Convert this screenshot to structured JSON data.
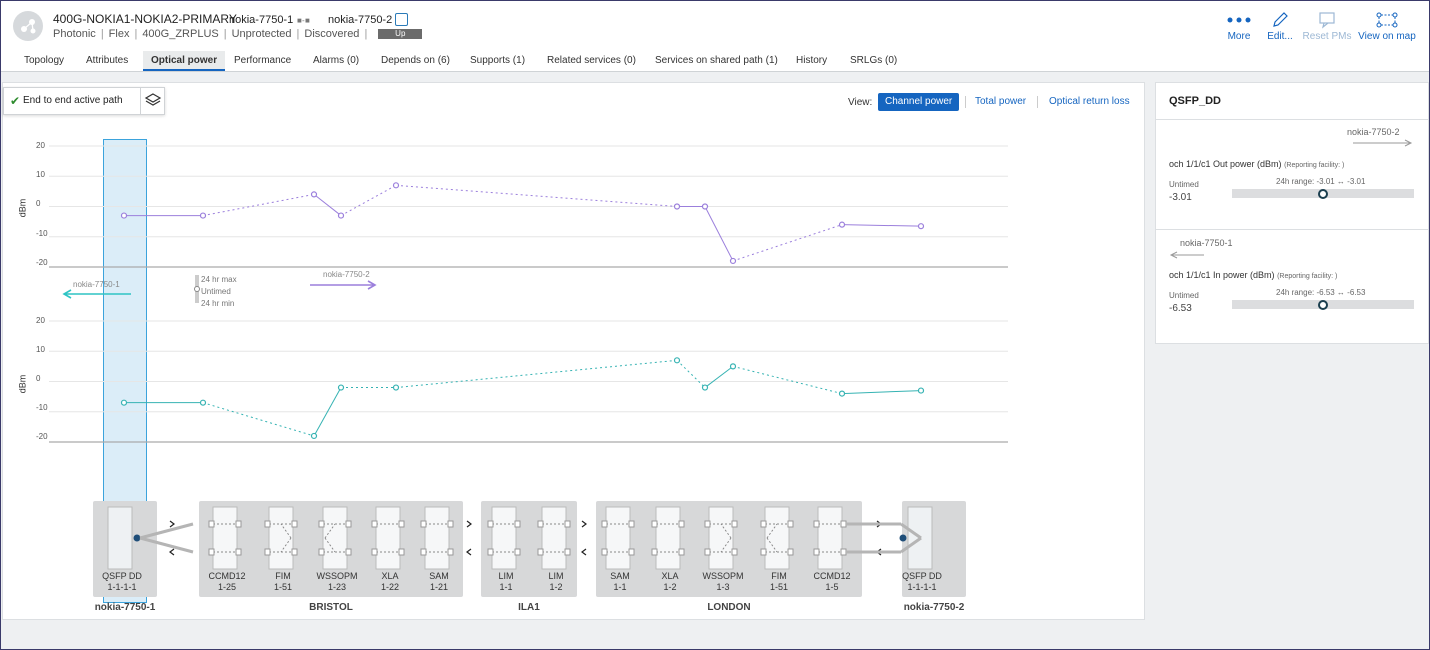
{
  "header": {
    "service_name": "400G-NOKIA1-NOKIA2-PRIMARY",
    "endpoint_a": "nokia-7750-1",
    "link_glyph": "■ - ■",
    "endpoint_b": "nokia-7750-2",
    "meta": [
      "Photonic",
      "Flex",
      "400G_ZRPLUS",
      "Unprotected",
      "Discovered"
    ],
    "status": "Up",
    "actions": [
      {
        "label": "More",
        "icon": "more-dots-icon",
        "enabled": true
      },
      {
        "label": "Edit...",
        "icon": "pencil-icon",
        "enabled": true
      },
      {
        "label": "Reset PMs",
        "icon": "reset-pm-icon",
        "enabled": false
      },
      {
        "label": "View on map",
        "icon": "map-topology-icon",
        "enabled": true
      }
    ],
    "accent_color": "#1565c0"
  },
  "tabs": [
    "Topology",
    "Attributes",
    "Optical power",
    "Performance",
    "Alarms (0)",
    "Depends on (6)",
    "Supports (1)",
    "Related services (0)",
    "Services on shared path (1)",
    "History",
    "SRLGs (0)"
  ],
  "active_tab": "Optical power",
  "main": {
    "path_toggle": "End to end active path",
    "view_label": "View:",
    "views": [
      "Channel power",
      "Total power",
      "Optical return loss"
    ],
    "active_view": "Channel power",
    "legend": {
      "max": "24 hr max",
      "untimed": "Untimed",
      "min": "24 hr min"
    }
  },
  "chart_data": [
    {
      "type": "line",
      "ylabel": "dBm",
      "yticks": [
        20,
        10,
        0,
        -10,
        -20
      ],
      "ylim": [
        -20,
        20
      ],
      "direction_label": "nokia-7750-2",
      "direction": "left-to-right",
      "series": [
        {
          "color": "#9b7fdc",
          "points": [
            -3,
            -3,
            4,
            -3,
            7,
            0,
            0,
            -18,
            -6,
            -6.5
          ]
        }
      ]
    },
    {
      "type": "line",
      "ylabel": "dBm",
      "yticks": [
        20,
        10,
        0,
        -10,
        -20
      ],
      "ylim": [
        -20,
        20
      ],
      "direction_label": "nokia-7750-1",
      "direction": "right-to-left",
      "series": [
        {
          "color": "#36b3b3",
          "points": [
            -7,
            -7,
            -18,
            -2,
            -2,
            7,
            -2,
            5,
            -4,
            -3
          ]
        }
      ]
    }
  ],
  "topology": {
    "groups": [
      {
        "site": "nokia-7750-1",
        "nodes": [
          {
            "type": "QSFP DD",
            "port": "1-1-1-1"
          }
        ]
      },
      {
        "site": "BRISTOL",
        "nodes": [
          {
            "type": "CCMD12",
            "port": "1-25"
          },
          {
            "type": "FIM",
            "port": "1-51"
          },
          {
            "type": "WSSOPM",
            "port": "1-23"
          },
          {
            "type": "XLA",
            "port": "1-22"
          },
          {
            "type": "SAM",
            "port": "1-21"
          }
        ]
      },
      {
        "site": "ILA1",
        "nodes": [
          {
            "type": "LIM",
            "port": "1-1"
          },
          {
            "type": "LIM",
            "port": "1-2"
          }
        ]
      },
      {
        "site": "LONDON",
        "nodes": [
          {
            "type": "SAM",
            "port": "1-1"
          },
          {
            "type": "XLA",
            "port": "1-2"
          },
          {
            "type": "WSSOPM",
            "port": "1-3"
          },
          {
            "type": "FIM",
            "port": "1-51"
          },
          {
            "type": "CCMD12",
            "port": "1-5"
          }
        ]
      },
      {
        "site": "nokia-7750-2",
        "nodes": [
          {
            "type": "QSFP DD",
            "port": "1-1-1-1"
          }
        ]
      }
    ]
  },
  "details": {
    "title": "QSFP_DD",
    "sections": [
      {
        "direction_label": "nokia-7750-2",
        "metric": "och 1/1/c1 Out power (dBm)",
        "facility": "(Reporting facility: )",
        "untimed_label": "Untimed",
        "value": "-3.01",
        "range_label": "24h range: -3.01 ↔ -3.01",
        "position": 0.5
      },
      {
        "direction_label": "nokia-7750-1",
        "metric": "och 1/1/c1 In power (dBm)",
        "facility": "(Reporting facility: )",
        "untimed_label": "Untimed",
        "value": "-6.53",
        "range_label": "24h range: -6.53 ↔ -6.53",
        "position": 0.5
      }
    ]
  }
}
